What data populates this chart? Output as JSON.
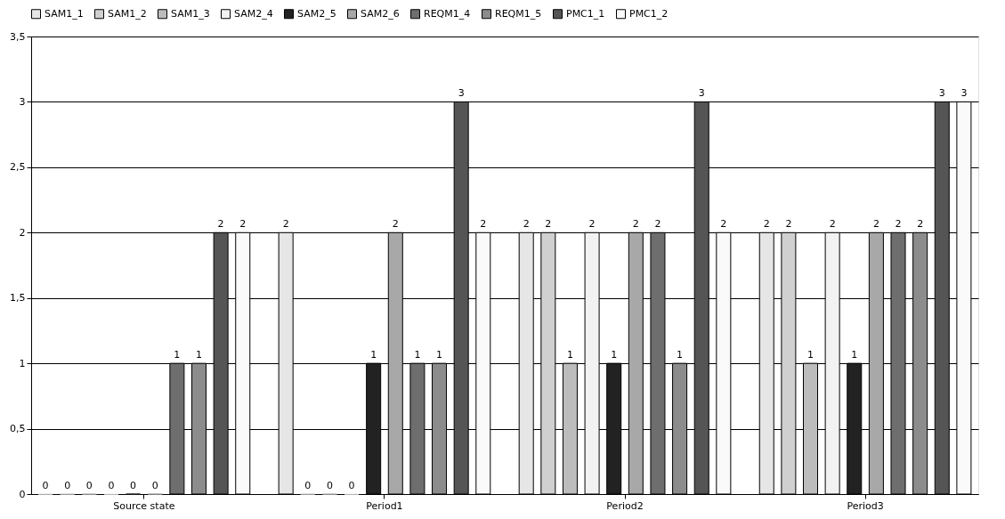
{
  "chart_data": {
    "type": "bar",
    "categories": [
      "Source state",
      "Period1",
      "Period2",
      "Period3"
    ],
    "series": [
      {
        "name": "SAM1_1",
        "color": "#e6e6e6",
        "values": [
          0,
          2,
          2,
          2
        ]
      },
      {
        "name": "SAM1_2",
        "color": "#d0d0d0",
        "values": [
          0,
          0,
          2,
          2
        ]
      },
      {
        "name": "SAM1_3",
        "color": "#bcbcbc",
        "values": [
          0,
          0,
          1,
          1
        ]
      },
      {
        "name": "SAM2_4",
        "color": "#f2f2f2",
        "values": [
          0,
          0,
          2,
          2
        ]
      },
      {
        "name": "SAM2_5",
        "color": "#222222",
        "values": [
          0,
          1,
          1,
          1
        ]
      },
      {
        "name": "SAM2_6",
        "color": "#a8a8a8",
        "values": [
          0,
          2,
          2,
          2
        ]
      },
      {
        "name": "REQM1_4",
        "color": "#6e6e6e",
        "values": [
          1,
          1,
          2,
          2
        ]
      },
      {
        "name": "REQM1_5",
        "color": "#8c8c8c",
        "values": [
          1,
          1,
          1,
          2
        ]
      },
      {
        "name": "PMC1_1",
        "color": "#555555",
        "values": [
          2,
          3,
          3,
          3
        ]
      },
      {
        "name": "PMC1_2",
        "color": "#fafafa",
        "values": [
          2,
          2,
          2,
          3
        ]
      }
    ],
    "ylim": [
      0,
      3.5
    ],
    "yticks": [
      0,
      {
        "value": 0.5,
        "label": "0,5"
      },
      1,
      {
        "value": 1.5,
        "label": "1,5"
      },
      2,
      {
        "value": 2.5,
        "label": "2,5"
      },
      3,
      {
        "value": 3.5,
        "label": "3,5"
      }
    ],
    "grid": "y",
    "legend": "top",
    "data_labels": true
  }
}
